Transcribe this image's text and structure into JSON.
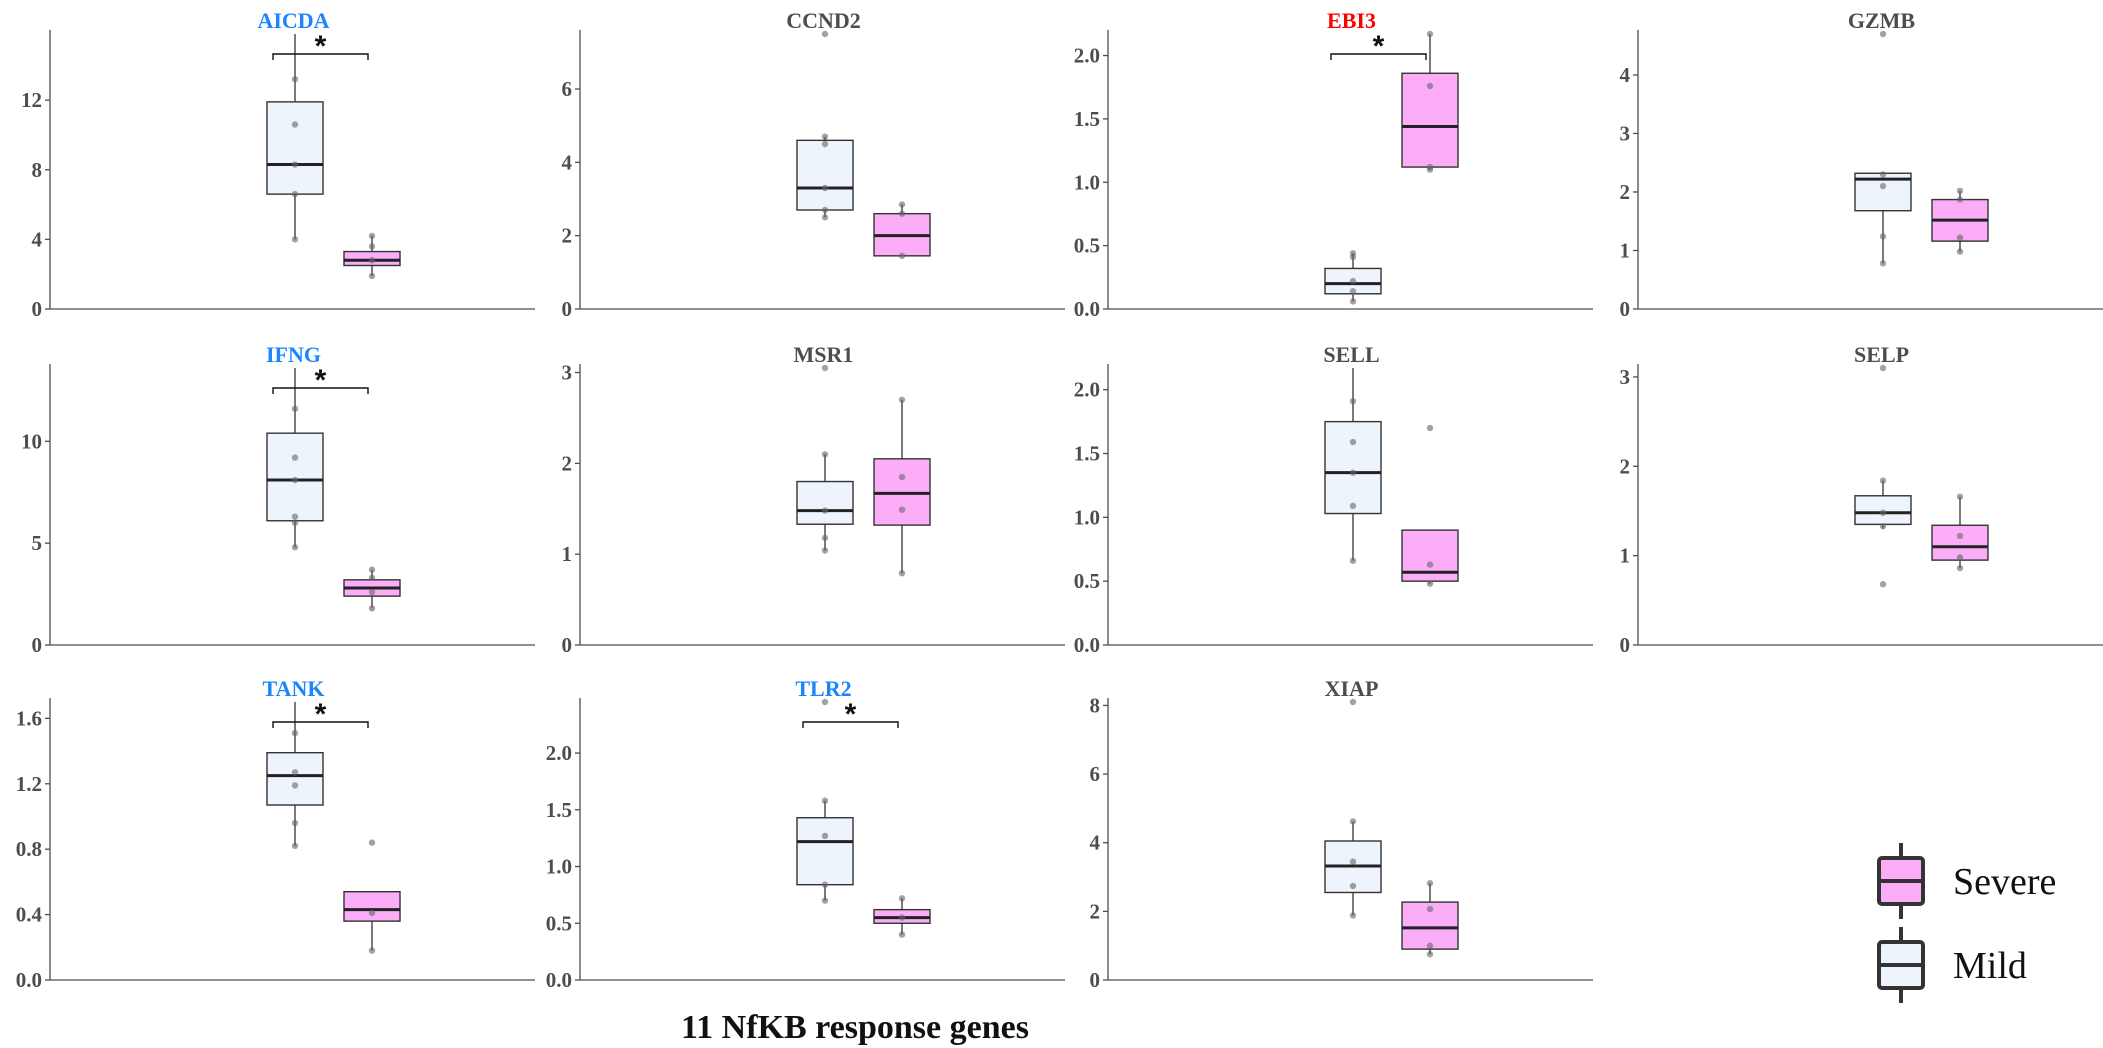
{
  "title": "11 NfKB response genes",
  "colors": {
    "mild": "#eef4fc",
    "severe": "#fbadf7",
    "highlight_down": "#1a85ff",
    "highlight_up": "#ff0000",
    "neutral_title": "#4d4d4d"
  },
  "legend": {
    "items": [
      {
        "label": "Severe",
        "key": "severe"
      },
      {
        "label": "Mild",
        "key": "mild"
      }
    ]
  },
  "chart_data": [
    {
      "type": "box",
      "gene": "AICDA",
      "title_color": "#1a85ff",
      "significant": "*",
      "ylim": [
        0,
        15.8
      ],
      "yticks": [
        0,
        4,
        8,
        12
      ],
      "series": [
        {
          "name": "Mild",
          "q1": 6.6,
          "median": 8.3,
          "q3": 11.9,
          "whisker_low": 4.0,
          "whisker_high": 15.8,
          "points": [
            4.0,
            6.6,
            8.3,
            10.6,
            13.2
          ]
        },
        {
          "name": "Severe",
          "q1": 2.5,
          "median": 2.8,
          "q3": 3.3,
          "whisker_low": 1.9,
          "whisker_high": 4.2,
          "points": [
            1.9,
            2.8,
            3.6,
            4.2
          ]
        }
      ]
    },
    {
      "type": "box",
      "gene": "CCND2",
      "title_color": "#4d4d4d",
      "significant": "",
      "ylim": [
        0,
        7.5
      ],
      "yticks": [
        0,
        2,
        4,
        6
      ],
      "series": [
        {
          "name": "Mild",
          "q1": 2.7,
          "median": 3.3,
          "q3": 4.6,
          "whisker_low": 2.5,
          "whisker_high": 4.7,
          "points": [
            2.5,
            2.7,
            3.3,
            4.5,
            4.7,
            7.5
          ]
        },
        {
          "name": "Severe",
          "q1": 1.45,
          "median": 2.0,
          "q3": 2.6,
          "whisker_low": 1.45,
          "whisker_high": 2.85,
          "points": [
            1.45,
            2.6,
            2.85
          ]
        }
      ]
    },
    {
      "type": "box",
      "gene": "EBI3",
      "title_color": "#ff0000",
      "significant": "*",
      "ylim": [
        0,
        2.17
      ],
      "yticks": [
        0,
        0.5,
        1.0,
        1.5,
        2.0
      ],
      "series": [
        {
          "name": "Mild",
          "q1": 0.12,
          "median": 0.2,
          "q3": 0.32,
          "whisker_low": 0.06,
          "whisker_high": 0.44,
          "points": [
            0.06,
            0.14,
            0.22,
            0.41,
            0.44
          ]
        },
        {
          "name": "Severe",
          "q1": 1.12,
          "median": 1.44,
          "q3": 1.86,
          "whisker_low": 1.1,
          "whisker_high": 2.17,
          "points": [
            1.1,
            1.12,
            1.76,
            2.17
          ]
        }
      ]
    },
    {
      "type": "box",
      "gene": "GZMB",
      "title_color": "#4d4d4d",
      "significant": "",
      "ylim": [
        0,
        4.7
      ],
      "yticks": [
        0,
        1,
        2,
        3,
        4
      ],
      "series": [
        {
          "name": "Mild",
          "q1": 1.68,
          "median": 2.22,
          "q3": 2.32,
          "whisker_low": 0.78,
          "whisker_high": 2.34,
          "points": [
            0.78,
            1.24,
            2.1,
            2.3,
            4.7
          ]
        },
        {
          "name": "Severe",
          "q1": 1.16,
          "median": 1.52,
          "q3": 1.87,
          "whisker_low": 0.98,
          "whisker_high": 2.02,
          "points": [
            0.98,
            1.22,
            1.87,
            2.02
          ]
        }
      ]
    },
    {
      "type": "box",
      "gene": "IFNG",
      "title_color": "#1a85ff",
      "significant": "*",
      "ylim": [
        0,
        13.6
      ],
      "yticks": [
        0,
        5,
        10
      ],
      "series": [
        {
          "name": "Mild",
          "q1": 6.1,
          "median": 8.1,
          "q3": 10.4,
          "whisker_low": 4.8,
          "whisker_high": 13.6,
          "points": [
            4.8,
            6.0,
            6.3,
            8.1,
            9.2,
            11.6
          ]
        },
        {
          "name": "Severe",
          "q1": 2.4,
          "median": 2.8,
          "q3": 3.2,
          "whisker_low": 1.8,
          "whisker_high": 3.7,
          "points": [
            1.8,
            2.6,
            3.3,
            3.7
          ]
        }
      ]
    },
    {
      "type": "box",
      "gene": "MSR1",
      "title_color": "#4d4d4d",
      "significant": "",
      "ylim": [
        0,
        3.05
      ],
      "yticks": [
        0,
        1,
        2,
        3
      ],
      "series": [
        {
          "name": "Mild",
          "q1": 1.33,
          "median": 1.48,
          "q3": 1.8,
          "whisker_low": 1.04,
          "whisker_high": 2.1,
          "points": [
            1.04,
            1.18,
            1.48,
            2.1,
            3.05
          ]
        },
        {
          "name": "Severe",
          "q1": 1.32,
          "median": 1.67,
          "q3": 2.05,
          "whisker_low": 0.79,
          "whisker_high": 2.7,
          "points": [
            0.79,
            1.49,
            1.85,
            2.7
          ]
        }
      ]
    },
    {
      "type": "box",
      "gene": "SELL",
      "title_color": "#4d4d4d",
      "significant": "",
      "ylim": [
        0,
        2.17
      ],
      "yticks": [
        0,
        0.5,
        1.0,
        1.5,
        2.0
      ],
      "series": [
        {
          "name": "Mild",
          "q1": 1.03,
          "median": 1.35,
          "q3": 1.75,
          "whisker_low": 0.66,
          "whisker_high": 2.17,
          "points": [
            0.66,
            1.09,
            1.35,
            1.59,
            1.91
          ]
        },
        {
          "name": "Severe",
          "q1": 0.5,
          "median": 0.57,
          "q3": 0.9,
          "whisker_low": 0.48,
          "whisker_high": 0.9,
          "points": [
            0.48,
            0.63,
            1.7
          ]
        }
      ]
    },
    {
      "type": "box",
      "gene": "SELP",
      "title_color": "#4d4d4d",
      "significant": "",
      "ylim": [
        0,
        3.1
      ],
      "yticks": [
        0,
        1,
        2,
        3
      ],
      "series": [
        {
          "name": "Mild",
          "q1": 1.35,
          "median": 1.48,
          "q3": 1.67,
          "whisker_low": 1.3,
          "whisker_high": 1.84,
          "points": [
            0.68,
            1.33,
            1.48,
            1.84,
            3.1
          ]
        },
        {
          "name": "Severe",
          "q1": 0.95,
          "median": 1.1,
          "q3": 1.34,
          "whisker_low": 0.86,
          "whisker_high": 1.66,
          "points": [
            0.86,
            0.98,
            1.22,
            1.66
          ]
        }
      ]
    },
    {
      "type": "box",
      "gene": "TANK",
      "title_color": "#1a85ff",
      "significant": "*",
      "ylim": [
        0,
        1.7
      ],
      "yticks": [
        0,
        0.4,
        0.8,
        1.2,
        1.6
      ],
      "series": [
        {
          "name": "Mild",
          "q1": 1.07,
          "median": 1.25,
          "q3": 1.39,
          "whisker_low": 0.82,
          "whisker_high": 1.7,
          "points": [
            0.82,
            0.96,
            1.19,
            1.27,
            1.51
          ]
        },
        {
          "name": "Severe",
          "q1": 0.36,
          "median": 0.43,
          "q3": 0.54,
          "whisker_low": 0.18,
          "whisker_high": 0.54,
          "points": [
            0.18,
            0.41,
            0.84
          ]
        }
      ]
    },
    {
      "type": "box",
      "gene": "TLR2",
      "title_color": "#1a85ff",
      "significant": "*",
      "ylim": [
        0,
        2.45
      ],
      "yticks": [
        0,
        0.5,
        1.0,
        1.5,
        2.0
      ],
      "series": [
        {
          "name": "Mild",
          "q1": 0.84,
          "median": 1.22,
          "q3": 1.43,
          "whisker_low": 0.7,
          "whisker_high": 1.58,
          "points": [
            0.7,
            0.84,
            1.27,
            1.58,
            2.45
          ]
        },
        {
          "name": "Severe",
          "q1": 0.5,
          "median": 0.55,
          "q3": 0.62,
          "whisker_low": 0.4,
          "whisker_high": 0.72,
          "points": [
            0.4,
            0.55,
            0.72
          ]
        }
      ]
    },
    {
      "type": "box",
      "gene": "XIAP",
      "title_color": "#4d4d4d",
      "significant": "",
      "ylim": [
        0,
        8.1
      ],
      "yticks": [
        0,
        2,
        4,
        6,
        8
      ],
      "series": [
        {
          "name": "Mild",
          "q1": 2.55,
          "median": 3.32,
          "q3": 4.05,
          "whisker_low": 1.88,
          "whisker_high": 4.62,
          "points": [
            1.88,
            2.74,
            3.45,
            4.62,
            8.1
          ]
        },
        {
          "name": "Severe",
          "q1": 0.9,
          "median": 1.52,
          "q3": 2.27,
          "whisker_low": 0.75,
          "whisker_high": 2.82,
          "points": [
            0.75,
            1.0,
            2.07,
            2.82
          ]
        }
      ]
    }
  ]
}
